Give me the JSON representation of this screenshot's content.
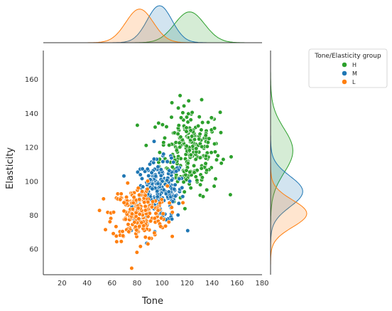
{
  "chart_data": {
    "type": "scatter",
    "xlabel": "Tone",
    "ylabel": "Elasticity",
    "xlim": [
      5,
      180
    ],
    "ylim": [
      45,
      177
    ],
    "xticks": [
      20,
      40,
      60,
      80,
      100,
      120,
      140,
      160,
      180
    ],
    "yticks": [
      60,
      80,
      100,
      120,
      140,
      160
    ],
    "grid": false,
    "legend": {
      "title": "Tone/Elasticity group",
      "placement": "outside-right"
    },
    "marginals": "kde",
    "series": [
      {
        "name": "H",
        "color": "#2ca02c",
        "n": 260,
        "x_center": 122,
        "x_sd": 12,
        "y_center": 118,
        "y_sd": 13
      },
      {
        "name": "M",
        "color": "#1f77b4",
        "n": 230,
        "x_center": 98,
        "x_sd": 10,
        "y_center": 94,
        "y_sd": 9
      },
      {
        "name": "L",
        "color": "#ff7f0e",
        "n": 230,
        "x_center": 82,
        "x_sd": 11,
        "y_center": 81,
        "y_sd": 8
      }
    ]
  }
}
